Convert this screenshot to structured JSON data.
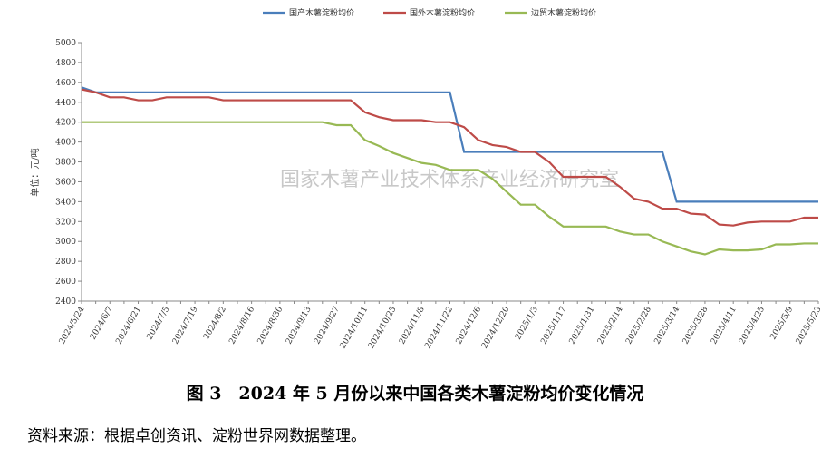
{
  "chart_data": {
    "type": "line",
    "ylabel": "单位：元/吨",
    "watermark": "国家木薯产业技术体系产业经济研究室",
    "categories": [
      "2024/5/24",
      null,
      "2024/6/7",
      null,
      "2024/6/21",
      null,
      "2024/7/5",
      null,
      "2024/7/19",
      null,
      "2024/8/2",
      null,
      "2024/8/16",
      null,
      "2024/8/30",
      null,
      "2024/9/13",
      null,
      "2024/9/27",
      null,
      "2024/10/11",
      null,
      "2024/10/25",
      null,
      "2024/11/8",
      null,
      "2024/11/22",
      null,
      "2024/12/6",
      null,
      "2024/12/20",
      null,
      "2025/1/3",
      null,
      "2025/1/17",
      null,
      "2025/1/31",
      null,
      "2025/2/14",
      null,
      "2025/2/28",
      null,
      "2025/3/14",
      null,
      "2025/3/28",
      null,
      "2025/4/11",
      null,
      "2025/4/25",
      null,
      "2025/5/9",
      null,
      "2025/5/23"
    ],
    "series": [
      {
        "name": "国产木薯淀粉均价",
        "color": "#4a7ebb",
        "values": [
          4550,
          4500,
          4500,
          4500,
          4500,
          4500,
          4500,
          4500,
          4500,
          4500,
          4500,
          4500,
          4500,
          4500,
          4500,
          4500,
          4500,
          4500,
          4500,
          4500,
          4500,
          4500,
          4500,
          4500,
          4500,
          4500,
          4500,
          3900,
          3900,
          3900,
          3900,
          3900,
          3900,
          3900,
          3900,
          3900,
          3900,
          3900,
          3900,
          3900,
          3900,
          3900,
          3400,
          3400,
          3400,
          3400,
          3400,
          3400,
          3400,
          3400,
          3400,
          3400,
          3400
        ]
      },
      {
        "name": "国外木薯淀粉均价",
        "color": "#be4b48",
        "values": [
          4530,
          4500,
          4450,
          4450,
          4420,
          4420,
          4450,
          4450,
          4450,
          4450,
          4420,
          4420,
          4420,
          4420,
          4420,
          4420,
          4420,
          4420,
          4420,
          4420,
          4300,
          4250,
          4220,
          4220,
          4220,
          4200,
          4200,
          4150,
          4020,
          3970,
          3950,
          3900,
          3900,
          3800,
          3650,
          3650,
          3650,
          3650,
          3550,
          3430,
          3400,
          3330,
          3330,
          3280,
          3270,
          3170,
          3160,
          3190,
          3200,
          3200,
          3200,
          3240,
          3240
        ]
      },
      {
        "name": "边贸木薯淀粉均价",
        "color": "#98b954",
        "values": [
          4200,
          4200,
          4200,
          4200,
          4200,
          4200,
          4200,
          4200,
          4200,
          4200,
          4200,
          4200,
          4200,
          4200,
          4200,
          4200,
          4200,
          4200,
          4170,
          4170,
          4020,
          3960,
          3890,
          3840,
          3790,
          3770,
          3720,
          3720,
          3720,
          3630,
          3500,
          3370,
          3370,
          3250,
          3150,
          3150,
          3150,
          3150,
          3100,
          3070,
          3070,
          3000,
          2950,
          2900,
          2870,
          2920,
          2910,
          2910,
          2920,
          2970,
          2970,
          2980,
          2980
        ]
      }
    ],
    "ylim": [
      2400,
      5000
    ],
    "yticks": [
      2400,
      2600,
      2800,
      3000,
      3200,
      3400,
      3600,
      3800,
      4000,
      4200,
      4400,
      4600,
      4800,
      5000
    ],
    "grid": false
  },
  "caption": "图 3　2024 年 5 月份以来中国各类木薯淀粉均价变化情况",
  "source": "资料来源：根据卓创资讯、淀粉世界网数据整理。"
}
